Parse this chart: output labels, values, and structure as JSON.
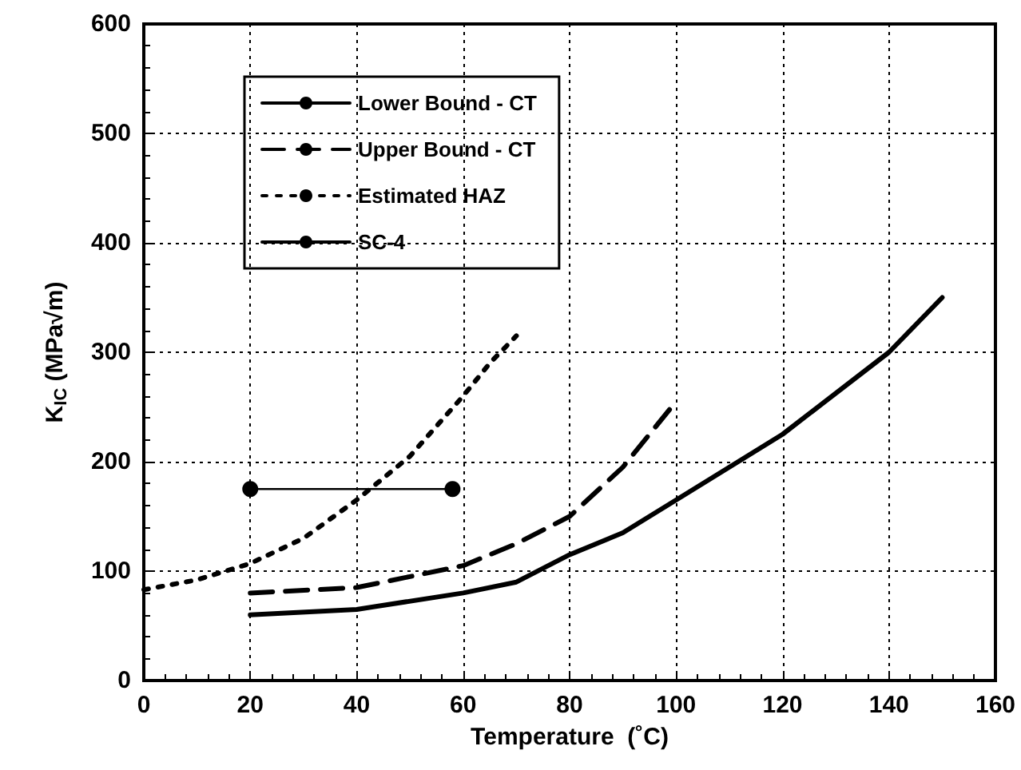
{
  "chart_data": {
    "type": "line",
    "xlabel": "Temperature  (˚C)",
    "ylabel": "K$_{IC}$ (MPa√m)",
    "xlim": [
      0,
      160
    ],
    "xticks": [
      0,
      20,
      40,
      60,
      80,
      100,
      120,
      140,
      160
    ],
    "ylim": [
      0,
      600
    ],
    "yticks": [
      0,
      100,
      200,
      300,
      400,
      500,
      600
    ],
    "grid": true,
    "legend": "top left",
    "series": [
      {
        "name": "Lower Bound - CT",
        "color": "#000000",
        "line_style": "solid",
        "marker": "none",
        "x": [
          20,
          40,
          60,
          70,
          80,
          90,
          100,
          120,
          140,
          150
        ],
        "values": [
          60,
          65,
          80,
          90,
          115,
          135,
          165,
          225,
          300,
          350
        ]
      },
      {
        "name": "Upper Bound - CT",
        "color": "#000000",
        "line_style": "dashed",
        "marker": "none",
        "x": [
          20,
          40,
          50,
          60,
          70,
          80,
          90,
          100
        ],
        "values": [
          80,
          85,
          95,
          105,
          125,
          150,
          195,
          255
        ]
      },
      {
        "name": "Estimated HAZ",
        "color": "#000000",
        "line_style": "dotted",
        "marker": "none",
        "x": [
          0,
          10,
          20,
          30,
          40,
          50,
          60,
          65,
          70
        ],
        "values": [
          83,
          92,
          107,
          130,
          165,
          205,
          260,
          290,
          315
        ]
      },
      {
        "name": "SC-4",
        "color": "#000000",
        "line_style": "solid",
        "marker": "circle",
        "x": [
          20,
          58
        ],
        "values": [
          175,
          175
        ]
      }
    ]
  }
}
